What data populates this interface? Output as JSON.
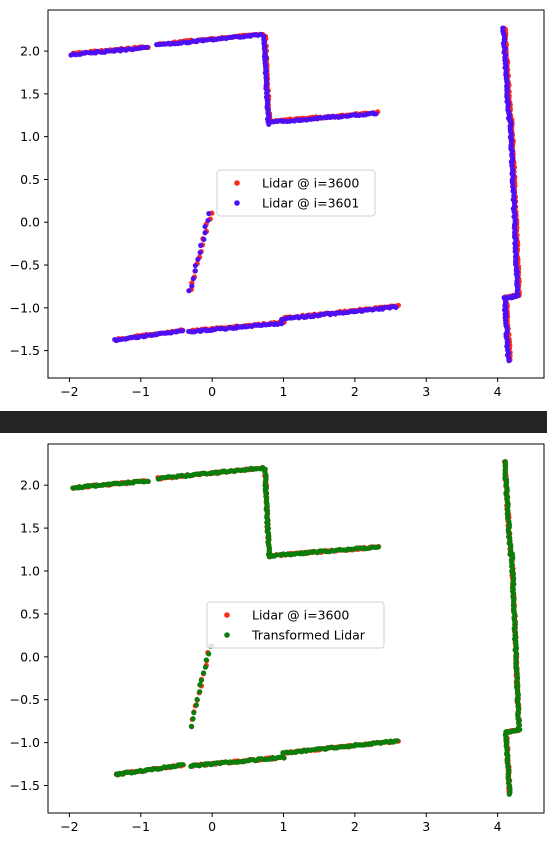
{
  "chart_data": [
    {
      "type": "scatter",
      "xlim": [
        -2.3,
        4.65
      ],
      "ylim": [
        -1.82,
        2.48
      ],
      "xticks": [
        -2,
        -1,
        0,
        1,
        2,
        3,
        4
      ],
      "yticks": [
        -1.5,
        -1.0,
        -0.5,
        0.0,
        0.5,
        1.0,
        1.5,
        2.0
      ],
      "xtick_labels": [
        "−2",
        "−1",
        "0",
        "1",
        "2",
        "3",
        "4"
      ],
      "ytick_labels": [
        "−1.5",
        "−1.0",
        "−0.5",
        "0.0",
        "0.5",
        "1.0",
        "1.5",
        "2.0"
      ],
      "grid": false,
      "legend_position": "center",
      "series": [
        {
          "name": "Lidar @ i=3600",
          "color": "#ff2a1a",
          "segments": [
            [
              [
                -1.95,
                1.97
              ],
              [
                -0.9,
                2.05
              ]
            ],
            [
              [
                -0.75,
                2.08
              ],
              [
                0.7,
                2.2
              ]
            ],
            [
              [
                0.74,
                2.18
              ],
              [
                0.8,
                1.16
              ]
            ],
            [
              [
                0.85,
                1.18
              ],
              [
                2.33,
                1.28
              ]
            ],
            [
              [
                4.1,
                2.27
              ],
              [
                4.18,
                1.2
              ]
            ],
            [
              [
                4.2,
                1.2
              ],
              [
                4.3,
                -0.85
              ]
            ],
            [
              [
                4.3,
                -0.85
              ],
              [
                4.12,
                -0.88
              ]
            ],
            [
              [
                4.12,
                -0.88
              ],
              [
                4.17,
                -1.6
              ]
            ],
            [
              [
                -1.35,
                -1.37
              ],
              [
                -0.4,
                -1.26
              ]
            ],
            [
              [
                -0.3,
                -1.27
              ],
              [
                1.0,
                -1.17
              ]
            ],
            [
              [
                1.0,
                -1.12
              ],
              [
                2.6,
                -0.98
              ]
            ],
            [
              [
                -0.02,
                0.12
              ],
              [
                -0.3,
                -0.8
              ]
            ]
          ]
        },
        {
          "name": "Lidar @ i=3601",
          "color": "#4f0ff5",
          "segments": [
            [
              [
                -1.97,
                1.96
              ],
              [
                -0.92,
                2.04
              ]
            ],
            [
              [
                -0.77,
                2.07
              ],
              [
                0.68,
                2.19
              ]
            ],
            [
              [
                0.73,
                2.17
              ],
              [
                0.79,
                1.15
              ]
            ],
            [
              [
                0.84,
                1.17
              ],
              [
                2.3,
                1.27
              ]
            ],
            [
              [
                4.08,
                2.26
              ],
              [
                4.16,
                1.19
              ]
            ],
            [
              [
                4.18,
                1.19
              ],
              [
                4.28,
                -0.86
              ]
            ],
            [
              [
                4.28,
                -0.86
              ],
              [
                4.1,
                -0.89
              ]
            ],
            [
              [
                4.1,
                -0.89
              ],
              [
                4.15,
                -1.61
              ]
            ],
            [
              [
                -1.37,
                -1.38
              ],
              [
                -0.42,
                -1.27
              ]
            ],
            [
              [
                -0.32,
                -1.28
              ],
              [
                0.98,
                -1.18
              ]
            ],
            [
              [
                0.98,
                -1.13
              ],
              [
                2.58,
                -0.99
              ]
            ],
            [
              [
                -0.04,
                0.11
              ],
              [
                -0.32,
                -0.81
              ]
            ]
          ]
        }
      ]
    },
    {
      "type": "scatter",
      "xlim": [
        -2.3,
        4.65
      ],
      "ylim": [
        -1.82,
        2.48
      ],
      "xticks": [
        -2,
        -1,
        0,
        1,
        2,
        3,
        4
      ],
      "yticks": [
        -1.5,
        -1.0,
        -0.5,
        0.0,
        0.5,
        1.0,
        1.5,
        2.0
      ],
      "xtick_labels": [
        "−2",
        "−1",
        "0",
        "1",
        "2",
        "3",
        "4"
      ],
      "ytick_labels": [
        "−1.5",
        "−1.0",
        "−0.5",
        "0.0",
        "0.5",
        "1.0",
        "1.5",
        "2.0"
      ],
      "grid": false,
      "legend_position": "center",
      "series": [
        {
          "name": "Lidar @ i=3600",
          "color": "#ff2a1a",
          "segments": [
            [
              [
                -1.95,
                1.97
              ],
              [
                -0.9,
                2.05
              ]
            ],
            [
              [
                -0.75,
                2.08
              ],
              [
                0.7,
                2.2
              ]
            ],
            [
              [
                0.74,
                2.18
              ],
              [
                0.8,
                1.16
              ]
            ],
            [
              [
                0.85,
                1.18
              ],
              [
                2.33,
                1.28
              ]
            ],
            [
              [
                4.1,
                2.27
              ],
              [
                4.18,
                1.2
              ]
            ],
            [
              [
                4.2,
                1.2
              ],
              [
                4.3,
                -0.85
              ]
            ],
            [
              [
                4.3,
                -0.85
              ],
              [
                4.12,
                -0.88
              ]
            ],
            [
              [
                4.12,
                -0.88
              ],
              [
                4.17,
                -1.6
              ]
            ],
            [
              [
                -1.35,
                -1.37
              ],
              [
                -0.4,
                -1.26
              ]
            ],
            [
              [
                -0.3,
                -1.27
              ],
              [
                1.0,
                -1.17
              ]
            ],
            [
              [
                1.0,
                -1.12
              ],
              [
                2.6,
                -0.98
              ]
            ],
            [
              [
                -0.02,
                0.12
              ],
              [
                -0.3,
                -0.8
              ]
            ]
          ]
        },
        {
          "name": "Transformed Lidar",
          "color": "#0a7d0a",
          "segments": [
            [
              [
                -1.95,
                1.97
              ],
              [
                -0.9,
                2.05
              ]
            ],
            [
              [
                -0.75,
                2.08
              ],
              [
                0.7,
                2.2
              ]
            ],
            [
              [
                0.74,
                2.18
              ],
              [
                0.8,
                1.16
              ]
            ],
            [
              [
                0.85,
                1.18
              ],
              [
                2.33,
                1.28
              ]
            ],
            [
              [
                4.1,
                2.27
              ],
              [
                4.18,
                1.2
              ]
            ],
            [
              [
                4.2,
                1.2
              ],
              [
                4.3,
                -0.85
              ]
            ],
            [
              [
                4.3,
                -0.85
              ],
              [
                4.12,
                -0.88
              ]
            ],
            [
              [
                4.12,
                -0.88
              ],
              [
                4.17,
                -1.6
              ]
            ],
            [
              [
                -1.35,
                -1.37
              ],
              [
                -0.4,
                -1.26
              ]
            ],
            [
              [
                -0.3,
                -1.27
              ],
              [
                1.0,
                -1.17
              ]
            ],
            [
              [
                1.0,
                -1.12
              ],
              [
                2.6,
                -0.98
              ]
            ],
            [
              [
                -0.02,
                0.12
              ],
              [
                -0.3,
                -0.8
              ]
            ]
          ]
        }
      ]
    }
  ]
}
